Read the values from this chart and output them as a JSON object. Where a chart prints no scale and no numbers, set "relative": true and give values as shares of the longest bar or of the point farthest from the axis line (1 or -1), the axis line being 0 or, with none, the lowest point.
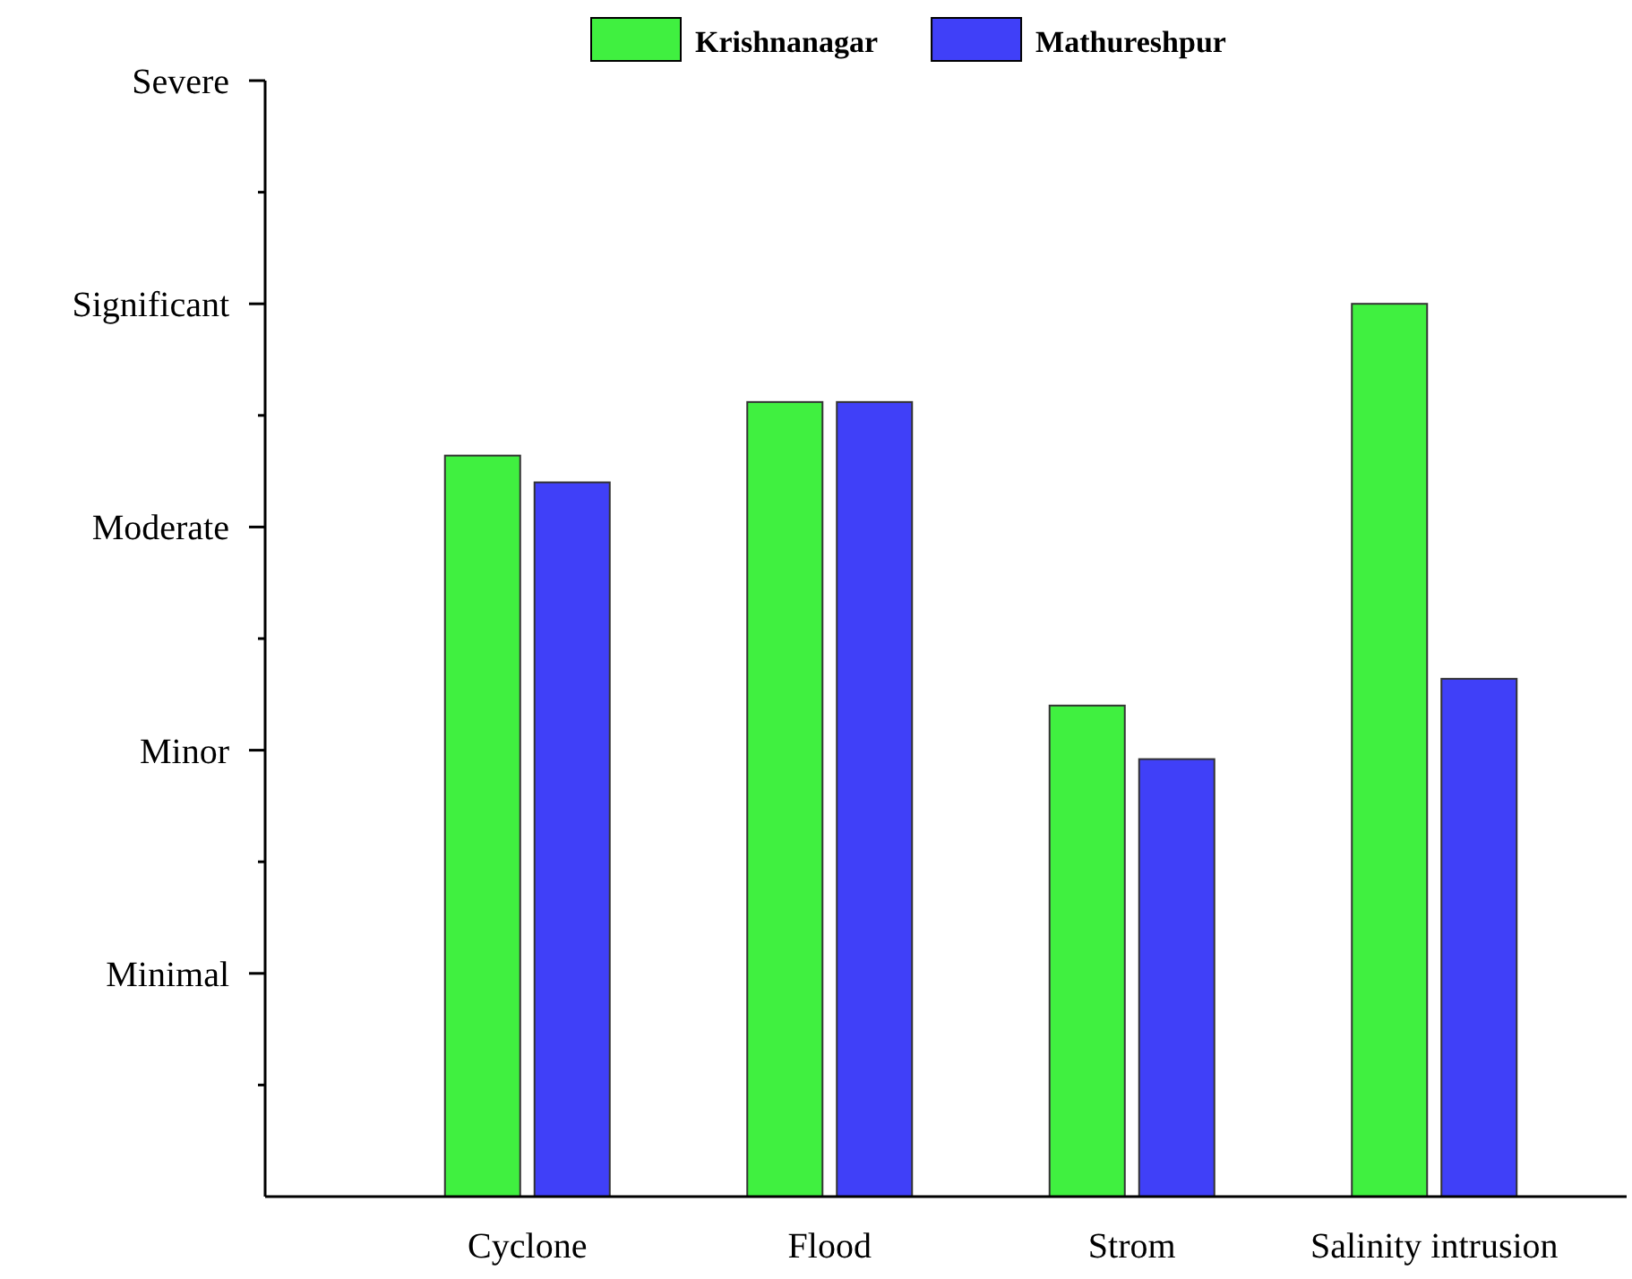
{
  "chart_data": {
    "type": "bar",
    "relative": true,
    "categories": [
      "Cyclone",
      "Flood",
      "Strom",
      "Salinity intrusion"
    ],
    "series": [
      {
        "name": "Krishnanagar",
        "color": "#40f040",
        "values": [
          0.83,
          0.89,
          0.55,
          1
        ]
      },
      {
        "name": "Mathureshpur",
        "color": "#4040f8",
        "values": [
          0.8,
          0.89,
          0.49,
          0.58
        ]
      }
    ],
    "annotations": [
      "Minimal",
      "Minor",
      "Moderate",
      "Significant",
      "Severe"
    ],
    "grid": false,
    "legend": "top"
  }
}
